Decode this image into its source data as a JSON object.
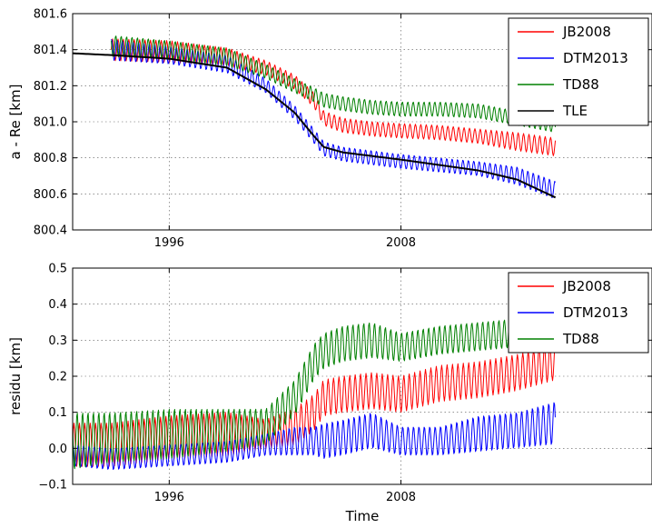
{
  "chart_data": [
    {
      "type": "line",
      "title": "",
      "xlabel": "",
      "ylabel": "a - Re [km]",
      "xlim": [
        1991,
        2021
      ],
      "ylim": [
        800.4,
        801.6
      ],
      "x_ticks": [
        {
          "value": 1996,
          "label": "1996"
        },
        {
          "value": 2008,
          "label": "2008"
        }
      ],
      "y_ticks": [
        {
          "value": 800.4,
          "label": "800.4"
        },
        {
          "value": 800.6,
          "label": "800.6"
        },
        {
          "value": 800.8,
          "label": "800.8"
        },
        {
          "value": 801.0,
          "label": "801.0"
        },
        {
          "value": 801.2,
          "label": "801.2"
        },
        {
          "value": 801.4,
          "label": "801.4"
        },
        {
          "value": 801.6,
          "label": "801.6"
        }
      ],
      "grid": true,
      "legend_position": "top-right",
      "series": [
        {
          "name": "JB2008",
          "color": "#ff0000",
          "x": [
            1993,
            1996,
            1999,
            2001,
            2002.5,
            2003.5,
            2004,
            2005,
            2006.5,
            2008,
            2010,
            2012,
            2014,
            2016
          ],
          "y": [
            801.4,
            801.39,
            801.36,
            801.3,
            801.22,
            801.12,
            801.02,
            800.98,
            800.96,
            800.95,
            800.94,
            800.92,
            800.89,
            800.86
          ],
          "amplitude": [
            0.06,
            0.06,
            0.05,
            0.04,
            0.04,
            0.04,
            0.04,
            0.04,
            0.04,
            0.04,
            0.04,
            0.04,
            0.05,
            0.05
          ]
        },
        {
          "name": "DTM2013",
          "color": "#0000ff",
          "x": [
            1993,
            1996,
            1999,
            2001,
            2002.5,
            2003.5,
            2004,
            2005,
            2006.5,
            2008,
            2010,
            2012,
            2014,
            2016
          ],
          "y": [
            801.4,
            801.37,
            801.32,
            801.2,
            801.05,
            800.92,
            800.85,
            800.82,
            800.8,
            800.78,
            800.76,
            800.74,
            800.7,
            800.62
          ],
          "amplitude": [
            0.06,
            0.05,
            0.05,
            0.04,
            0.04,
            0.04,
            0.04,
            0.04,
            0.04,
            0.04,
            0.04,
            0.04,
            0.05,
            0.05
          ]
        },
        {
          "name": "TD88",
          "color": "#008000",
          "x": [
            1993,
            1996,
            1999,
            2001,
            2002.5,
            2003.5,
            2004,
            2005,
            2006.5,
            2008,
            2010,
            2012,
            2014,
            2016
          ],
          "y": [
            801.42,
            801.4,
            801.36,
            801.28,
            801.2,
            801.15,
            801.12,
            801.1,
            801.08,
            801.07,
            801.07,
            801.06,
            801.02,
            800.98
          ],
          "amplitude": [
            0.06,
            0.05,
            0.05,
            0.04,
            0.04,
            0.04,
            0.04,
            0.04,
            0.04,
            0.04,
            0.04,
            0.04,
            0.04,
            0.04
          ]
        },
        {
          "name": "TLE",
          "color": "#000000",
          "x": [
            1991,
            1993,
            1996,
            1999,
            2001,
            2002.5,
            2003.5,
            2004,
            2005,
            2006.5,
            2008,
            2010,
            2012,
            2014,
            2016
          ],
          "y": [
            801.38,
            801.37,
            801.35,
            801.3,
            801.18,
            801.05,
            800.92,
            800.86,
            800.83,
            800.81,
            800.79,
            800.76,
            800.73,
            800.68,
            800.58
          ],
          "amplitude": null
        }
      ]
    },
    {
      "type": "line",
      "title": "",
      "xlabel": "Time",
      "ylabel": "residu [km]",
      "xlim": [
        1991,
        2021
      ],
      "ylim": [
        -0.1,
        0.5
      ],
      "x_ticks": [
        {
          "value": 1996,
          "label": "1996"
        },
        {
          "value": 2008,
          "label": "2008"
        }
      ],
      "y_ticks": [
        {
          "value": -0.1,
          "label": "−0.1"
        },
        {
          "value": 0.0,
          "label": "0.0"
        },
        {
          "value": 0.1,
          "label": "0.1"
        },
        {
          "value": 0.2,
          "label": "0.2"
        },
        {
          "value": 0.3,
          "label": "0.3"
        },
        {
          "value": 0.4,
          "label": "0.4"
        },
        {
          "value": 0.5,
          "label": "0.5"
        }
      ],
      "grid": true,
      "legend_position": "top-right",
      "series": [
        {
          "name": "JB2008",
          "color": "#ff0000",
          "x": [
            1991,
            1993,
            1996,
            1999,
            2001,
            2002.5,
            2003.5,
            2004,
            2005,
            2006.5,
            2008,
            2010,
            2012,
            2014,
            2016
          ],
          "y": [
            0.01,
            0.01,
            0.03,
            0.04,
            0.04,
            0.06,
            0.1,
            0.14,
            0.15,
            0.16,
            0.15,
            0.18,
            0.19,
            0.21,
            0.24
          ],
          "amplitude": [
            0.06,
            0.06,
            0.06,
            0.06,
            0.04,
            0.05,
            0.05,
            0.05,
            0.05,
            0.05,
            0.05,
            0.05,
            0.05,
            0.05,
            0.05
          ]
        },
        {
          "name": "DTM2013",
          "color": "#0000ff",
          "x": [
            1991,
            1993,
            1996,
            1999,
            2001,
            2002.5,
            2003.5,
            2004,
            2005,
            2006.5,
            2008,
            2010,
            2012,
            2014,
            2016
          ],
          "y": [
            -0.02,
            -0.03,
            -0.02,
            -0.01,
            0.01,
            0.02,
            0.02,
            0.02,
            0.03,
            0.05,
            0.02,
            0.02,
            0.04,
            0.05,
            0.07
          ],
          "amplitude": [
            0.03,
            0.03,
            0.03,
            0.03,
            0.03,
            0.04,
            0.04,
            0.05,
            0.05,
            0.05,
            0.04,
            0.04,
            0.05,
            0.05,
            0.06
          ]
        },
        {
          "name": "TD88",
          "color": "#008000",
          "x": [
            1991,
            1993,
            1996,
            1999,
            2001,
            2002.5,
            2003.5,
            2004,
            2005,
            2006.5,
            2008,
            2010,
            2012,
            2014,
            2016
          ],
          "y": [
            0.02,
            0.03,
            0.04,
            0.05,
            0.06,
            0.14,
            0.24,
            0.27,
            0.29,
            0.3,
            0.28,
            0.3,
            0.31,
            0.32,
            0.36
          ],
          "amplitude": [
            0.08,
            0.07,
            0.07,
            0.06,
            0.05,
            0.05,
            0.05,
            0.05,
            0.05,
            0.05,
            0.04,
            0.04,
            0.04,
            0.04,
            0.04
          ]
        }
      ]
    }
  ]
}
